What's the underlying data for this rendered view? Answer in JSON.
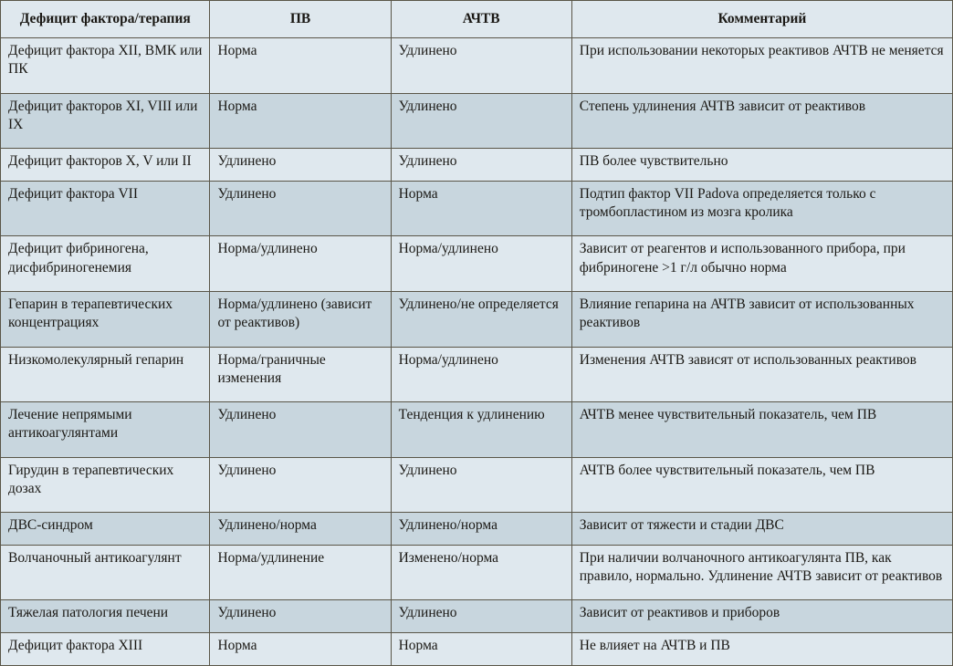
{
  "table": {
    "columns": [
      "Дефицит фактора/терапия",
      "ПВ",
      "АЧТВ",
      "Комментарий"
    ],
    "column_widths_pct": [
      22,
      19,
      19,
      40
    ],
    "header_bg": "#dfe8ee",
    "row_bg": "#dfe8ee",
    "row_bg_alt": "#c8d6de",
    "border_color": "#5a5648",
    "fontsize_pt": 12,
    "rows": [
      {
        "cells": [
          "Дефицит фактора XII, ВМК или ПК",
          "Норма",
          "Удлинено",
          "При использовании некоторых реактивов АЧТВ не меняется"
        ],
        "alt": false
      },
      {
        "cells": [
          "Дефицит факторов XI, VIII или IX",
          "Норма",
          "Удлинено",
          "Степень удлинения АЧТВ зависит от реактивов"
        ],
        "alt": true
      },
      {
        "cells": [
          "Дефицит факторов X, V или II",
          "Удлинено",
          "Удлинено",
          "ПВ более чувствительно"
        ],
        "alt": false
      },
      {
        "cells": [
          "Дефицит фактора VII",
          "Удлинено",
          "Норма",
          "Подтип фактор VII Padova определяется только с тромбопластином из мозга кролика"
        ],
        "alt": true
      },
      {
        "cells": [
          "Дефицит фибриногена, дисфибриногенемия",
          "Норма/удлинено",
          "Норма/удлинено",
          "Зависит от реагентов и использованного прибора, при фибриногене >1 г/л обычно норма"
        ],
        "alt": false
      },
      {
        "cells": [
          "Гепарин в терапевти­ческих концентрациях",
          "Норма/удлинено (зависит от реак­тивов)",
          "Удлинено/не оп­ределяется",
          "Влияние гепарина на АЧТВ зависит от использованных реактивов"
        ],
        "alt": true
      },
      {
        "cells": [
          "Низкомолекулярный гепарин",
          "Норма/граничные изменения",
          "Норма/удлинено",
          "Изменения АЧТВ зависят от использован­ных реактивов"
        ],
        "alt": false
      },
      {
        "cells": [
          "Лечение непрямыми антикоагулянтами",
          "Удлинено",
          "Тенденция к уд­линению",
          "АЧТВ менее чувствительный показатель, чем ПВ"
        ],
        "alt": true
      },
      {
        "cells": [
          "Гирудин в терапевти­ческих дозах",
          "Удлинено",
          "Удлинено",
          "АЧТВ более чувствительный показатель, чем ПВ"
        ],
        "alt": false
      },
      {
        "cells": [
          "ДВС-синдром",
          "Удлинено/норма",
          "Удлинено/норма",
          "Зависит от тяжести и стадии ДВС"
        ],
        "alt": true
      },
      {
        "cells": [
          "Волчаночный антикоагулянт",
          "Норма/удлинение",
          "Изменено/норма",
          "При наличии волчаночного антикоагулянта ПВ, как правило, нормально. Удлинение АЧТВ зависит от реактивов"
        ],
        "alt": false
      },
      {
        "cells": [
          "Тяжелая патология печени",
          "Удлинено",
          "Удлинено",
          "Зависит от реактивов и приборов"
        ],
        "alt": true
      },
      {
        "cells": [
          "Дефицит фактора XIII",
          "Норма",
          "Норма",
          "Не влияет на АЧТВ и ПВ"
        ],
        "alt": false
      }
    ]
  }
}
